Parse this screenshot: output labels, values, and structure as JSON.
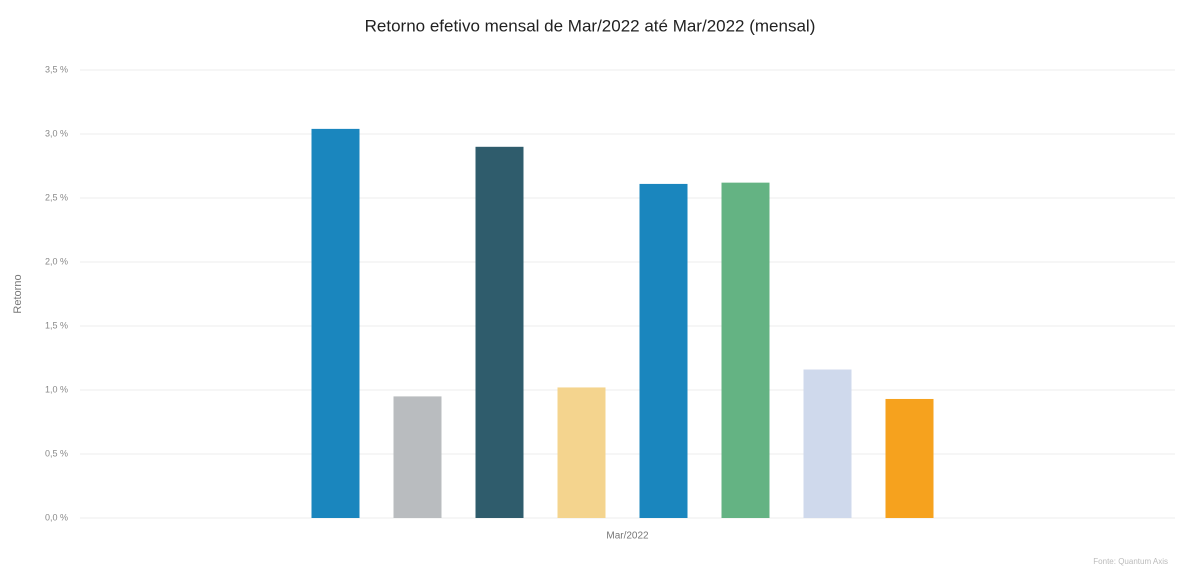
{
  "chart_data": {
    "type": "bar",
    "title": "Retorno efetivo mensal de Mar/2022 até Mar/2022 (mensal)",
    "y_label": "Retorno",
    "source": "Fonte: Quantum Axis",
    "categories": [
      "Mar/2022"
    ],
    "series": [
      {
        "color": "#1a86be",
        "values": [
          3.04
        ]
      },
      {
        "color": "#b9bcbf",
        "values": [
          0.95
        ]
      },
      {
        "color": "#2f5c6c",
        "values": [
          2.9
        ]
      },
      {
        "color": "#f4d48e",
        "values": [
          1.02
        ]
      },
      {
        "color": "#1a86be",
        "values": [
          2.61
        ]
      },
      {
        "color": "#64b383",
        "values": [
          2.62
        ]
      },
      {
        "color": "#cfd9ec",
        "values": [
          1.16
        ]
      },
      {
        "color": "#f6a21e",
        "values": [
          0.93
        ]
      }
    ],
    "ylim": [
      0,
      3.5
    ],
    "yticks": [
      {
        "value": 0,
        "label": "0,0 %"
      },
      {
        "value": 0.5,
        "label": "0,5 %"
      },
      {
        "value": 1,
        "label": "1,0 %"
      },
      {
        "value": 1.5,
        "label": "1,5 %"
      },
      {
        "value": 2,
        "label": "2,0 %"
      },
      {
        "value": 2.5,
        "label": "2,5 %"
      },
      {
        "value": 3,
        "label": "3,0 %"
      },
      {
        "value": 3.5,
        "label": "3,5 %"
      }
    ],
    "grid": true
  }
}
